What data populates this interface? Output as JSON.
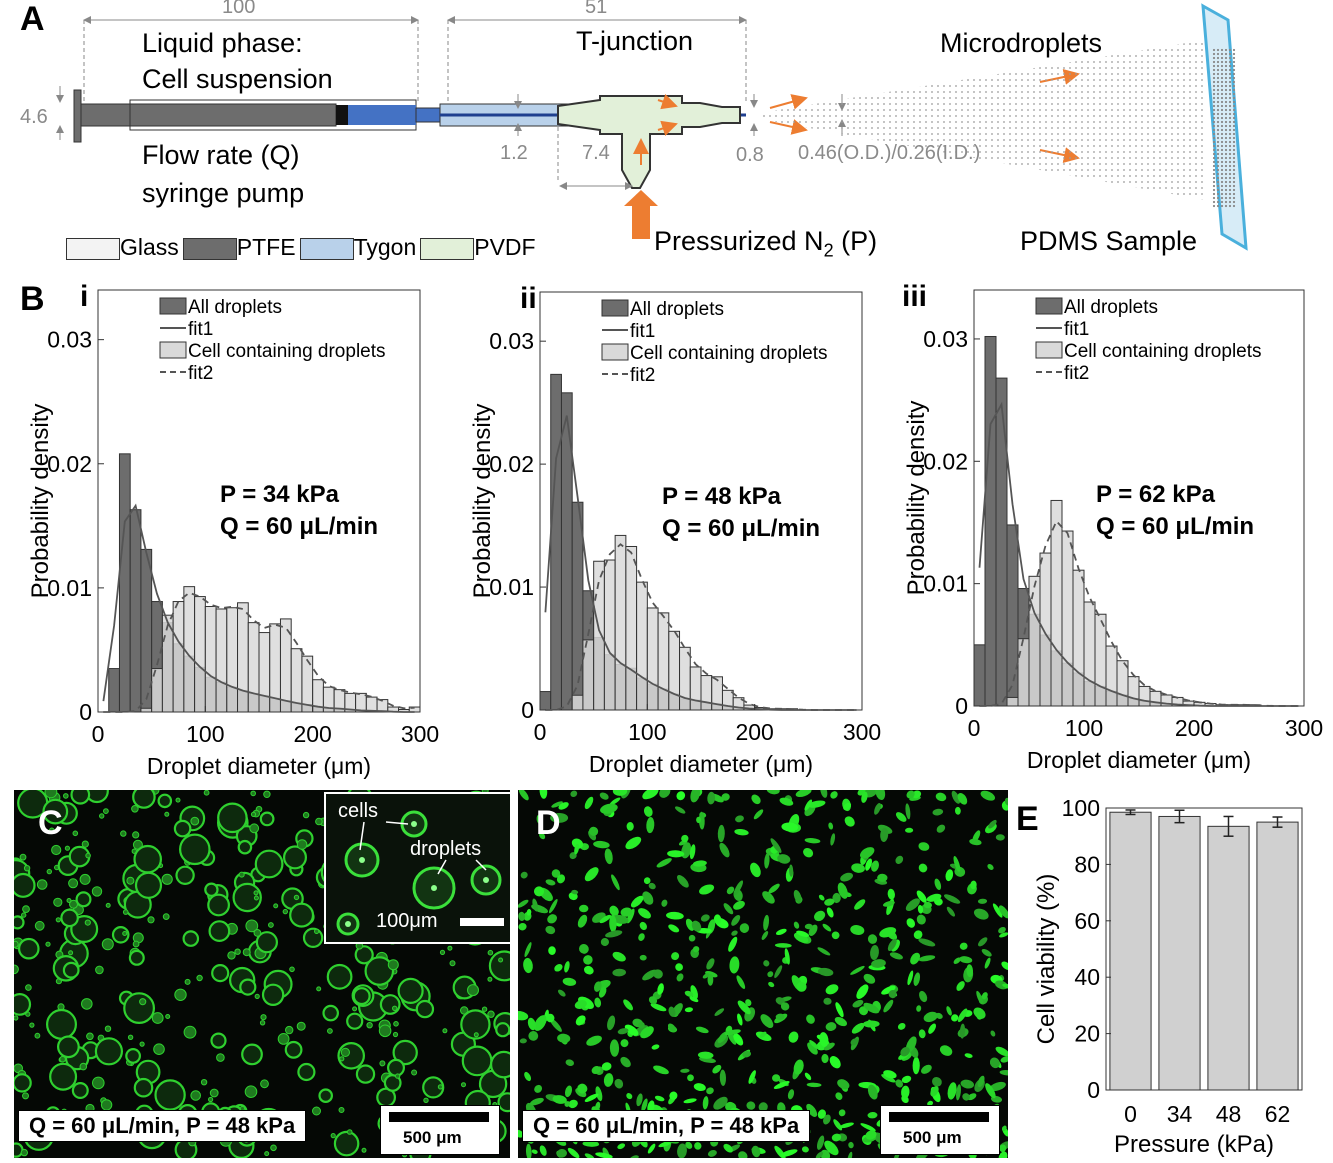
{
  "panel_a": {
    "letter": "A",
    "dims": {
      "syringe_length": "100",
      "tjunction_length": "51",
      "syringe_od": "4.6",
      "tube_od": "1.2",
      "tee_offset": "7.4",
      "nozzle_od": "0.8",
      "needle": "0.46(O.D.)/0.26(I.D.)"
    },
    "liquid_phase_line1": "Liquid phase:",
    "liquid_phase_line2": "Cell suspension",
    "flow_line1": "Flow rate (Q)",
    "flow_line2": "syringe pump",
    "tjunction": "T-junction",
    "microdroplets": "Microdroplets",
    "gas_label": "Pressurized N",
    "gas_sub": "2",
    "gas_suffix": " (P)",
    "sample": "PDMS Sample",
    "materials": [
      {
        "name": "Glass",
        "color": "#f3f3f3"
      },
      {
        "name": "PTFE",
        "color": "#6d6d6d"
      },
      {
        "name": "Tygon",
        "color": "#b9d1ea"
      },
      {
        "name": "PVDF",
        "color": "#e2f0d9"
      }
    ],
    "colors": {
      "arrow": "#ed7d31",
      "tygon": "#b9d1ea",
      "pvdf": "#e2f0d9",
      "sample": "#4ab0dc"
    }
  },
  "panel_b": {
    "letter": "B",
    "xlabel": "Droplet diameter (μm)",
    "ylabel": "Probability density",
    "legend": [
      "All droplets",
      "fit1",
      "Cell containing droplets",
      "fit2"
    ],
    "plots": [
      {
        "roman": "i",
        "p": "P = 34 kPa",
        "q": "Q = 60 μL/min"
      },
      {
        "roman": "ii",
        "p": "P = 48 kPa",
        "q": "Q = 60 μL/min"
      },
      {
        "roman": "iii",
        "p": "P = 62 kPa",
        "q": "Q = 60 μL/min"
      }
    ],
    "xticks": [
      "0",
      "100",
      "200",
      "300"
    ],
    "yticks": [
      "0",
      "0.01",
      "0.02",
      "0.03"
    ]
  },
  "panel_c": {
    "letter": "C",
    "inset_cells": "cells",
    "inset_droplets": "droplets",
    "inset_scale": "100μm",
    "condition": "Q = 60 μL/min, P = 48 kPa",
    "scale": "500 μm"
  },
  "panel_d": {
    "letter": "D",
    "condition": "Q = 60 μL/min, P = 48 kPa",
    "scale": "500 μm"
  },
  "panel_e": {
    "letter": "E",
    "xlabel": "Pressure (kPa)",
    "ylabel": "Cell viability (%)",
    "yticks": [
      "0",
      "20",
      "40",
      "60",
      "80",
      "100"
    ]
  },
  "chart_data": [
    {
      "type": "bar",
      "panel": "B-i",
      "xlabel": "Droplet diameter (μm)",
      "ylabel": "Probability density",
      "xlim": [
        0,
        300
      ],
      "ylim": [
        0,
        0.034
      ],
      "annotation": [
        "P = 34 kPa",
        "Q = 60 μL/min"
      ],
      "bin_width": 10,
      "series": [
        {
          "name": "All droplets",
          "x": [
            5,
            15,
            25,
            35,
            45,
            55,
            65,
            75,
            85,
            95,
            105,
            115,
            125,
            135,
            145,
            155,
            165,
            175,
            185,
            195,
            205,
            215,
            225,
            235,
            245,
            255,
            265,
            275,
            285,
            295
          ],
          "values": [
            0,
            0.0035,
            0.0208,
            0.0163,
            0.0131,
            0.0089,
            0.0072,
            0.0055,
            0.0045,
            0.0036,
            0.0028,
            0.0024,
            0.002,
            0.0017,
            0.0015,
            0.0013,
            0.0011,
            0.0009,
            0.0007,
            0.0006,
            0.0004,
            0.0003,
            0.0003,
            0.0002,
            0.0001,
            0.0001,
            0.0001,
            0,
            0,
            0
          ]
        },
        {
          "name": "Cell containing droplets",
          "x": [
            5,
            15,
            25,
            35,
            45,
            55,
            65,
            75,
            85,
            95,
            105,
            115,
            125,
            135,
            145,
            155,
            165,
            175,
            185,
            195,
            205,
            215,
            225,
            235,
            245,
            255,
            265,
            275,
            285,
            295
          ],
          "values": [
            0,
            0,
            0,
            0,
            0.0003,
            0.0035,
            0.0078,
            0.0089,
            0.0101,
            0.0093,
            0.0085,
            0.0083,
            0.0084,
            0.0088,
            0.0072,
            0.0064,
            0.0071,
            0.0075,
            0.0051,
            0.0045,
            0.0026,
            0.002,
            0.0018,
            0.0015,
            0.0015,
            0.0012,
            0.001,
            0.0004,
            0.0002,
            0.0004
          ]
        }
      ]
    },
    {
      "type": "bar",
      "panel": "B-ii",
      "xlabel": "Droplet diameter (μm)",
      "ylabel": "Probability density",
      "xlim": [
        0,
        300
      ],
      "ylim": [
        0,
        0.034
      ],
      "annotation": [
        "P = 48 kPa",
        "Q = 60 μL/min"
      ],
      "bin_width": 10,
      "series": [
        {
          "name": "All droplets",
          "x": [
            5,
            15,
            25,
            35,
            45,
            55,
            65,
            75,
            85,
            95,
            105,
            115,
            125,
            135,
            145,
            155,
            165,
            175,
            185,
            195,
            205,
            215,
            225,
            235,
            245,
            255,
            265,
            275,
            285,
            295
          ],
          "values": [
            0.0015,
            0.0273,
            0.0258,
            0.0169,
            0.0097,
            0.0059,
            0.0045,
            0.0037,
            0.0034,
            0.0026,
            0.0021,
            0.0017,
            0.0013,
            0.0009,
            0.0008,
            0.0006,
            0.0005,
            0.0003,
            0.0002,
            0.0001,
            0.0001,
            0,
            0,
            0,
            0,
            0,
            0,
            0,
            0,
            0
          ]
        },
        {
          "name": "Cell containing droplets",
          "x": [
            5,
            15,
            25,
            35,
            45,
            55,
            65,
            75,
            85,
            95,
            105,
            115,
            125,
            135,
            145,
            155,
            165,
            175,
            185,
            195,
            205,
            215,
            225,
            235,
            245,
            255,
            265,
            275,
            285,
            295
          ],
          "values": [
            0,
            0,
            0,
            0.0012,
            0.0057,
            0.0121,
            0.0122,
            0.0142,
            0.0133,
            0.0104,
            0.0083,
            0.0079,
            0.0064,
            0.0051,
            0.0035,
            0.0028,
            0.0027,
            0.0016,
            0.001,
            0.0004,
            0.0002,
            0.0001,
            0.0001,
            0.0001,
            0,
            0,
            0,
            0,
            0,
            0
          ]
        }
      ]
    },
    {
      "type": "bar",
      "panel": "B-iii",
      "xlabel": "Droplet diameter (μm)",
      "ylabel": "Probability density",
      "xlim": [
        0,
        300
      ],
      "ylim": [
        0,
        0.034
      ],
      "annotation": [
        "P = 62 kPa",
        "Q = 60 μL/min"
      ],
      "bin_width": 10,
      "series": [
        {
          "name": "All droplets",
          "x": [
            5,
            15,
            25,
            35,
            45,
            55,
            65,
            75,
            85,
            95,
            105,
            115,
            125,
            135,
            145,
            155,
            165,
            175,
            185,
            195,
            205,
            215,
            225,
            235,
            245,
            255,
            265,
            275,
            285,
            295
          ],
          "values": [
            0.005,
            0.0302,
            0.0268,
            0.0148,
            0.0096,
            0.0075,
            0.0058,
            0.0045,
            0.0035,
            0.0027,
            0.002,
            0.0016,
            0.0012,
            0.0009,
            0.0006,
            0.0004,
            0.0003,
            0.0002,
            0.0001,
            0.0001,
            0,
            0,
            0,
            0,
            0,
            0,
            0,
            0,
            0,
            0
          ]
        },
        {
          "name": "Cell containing droplets",
          "x": [
            5,
            15,
            25,
            35,
            45,
            55,
            65,
            75,
            85,
            95,
            105,
            115,
            125,
            135,
            145,
            155,
            165,
            175,
            185,
            195,
            205,
            215,
            225,
            235,
            245,
            255,
            265,
            275,
            285,
            295
          ],
          "values": [
            0,
            0,
            0,
            0.0007,
            0.0055,
            0.0106,
            0.0125,
            0.0168,
            0.0143,
            0.0111,
            0.0085,
            0.0075,
            0.0049,
            0.0037,
            0.0024,
            0.0016,
            0.0012,
            0.0009,
            0.0007,
            0.0004,
            0.0003,
            0.0002,
            0.0001,
            0.0001,
            0.0001,
            0.0001,
            0,
            0,
            0,
            0
          ]
        }
      ]
    },
    {
      "type": "bar",
      "panel": "E",
      "xlabel": "Pressure (kPa)",
      "ylabel": "Cell viability (%)",
      "categories": [
        "0",
        "34",
        "48",
        "62"
      ],
      "values": [
        98.5,
        97,
        93.5,
        95
      ],
      "errors": [
        0.8,
        2.2,
        3.5,
        1.8
      ],
      "ylim": [
        0,
        100
      ]
    }
  ]
}
